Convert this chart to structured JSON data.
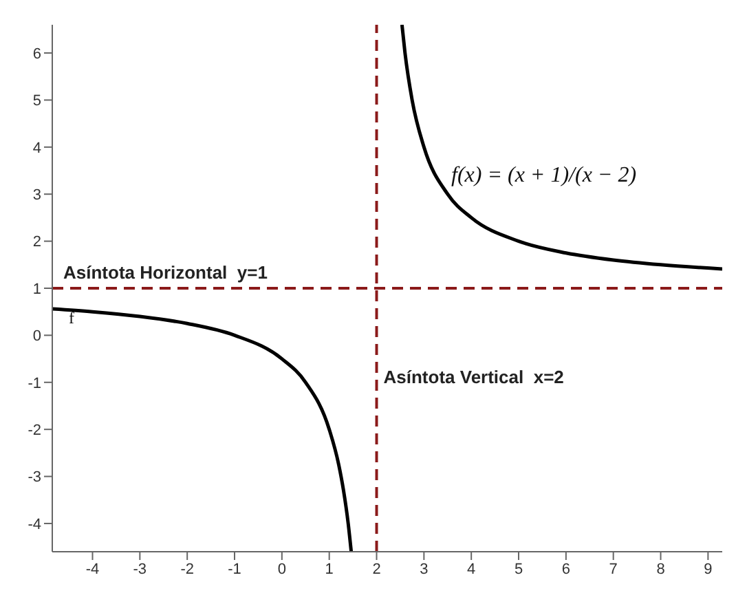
{
  "chart_data": {
    "type": "line",
    "xlim": [
      -4.85,
      9.3
    ],
    "ylim": [
      -4.6,
      6.6
    ],
    "xticks": [
      -4,
      -3,
      -2,
      -1,
      0,
      1,
      2,
      3,
      4,
      5,
      6,
      7,
      8,
      9
    ],
    "yticks": [
      -4,
      -3,
      -2,
      -1,
      0,
      1,
      2,
      3,
      4,
      5,
      6
    ],
    "grid": false,
    "marker": "none",
    "line_style": "solid",
    "series": [
      {
        "color": "#000000",
        "x": [
          -4.85,
          -4,
          -3,
          -2,
          -1,
          0,
          0.5,
          1,
          1.2,
          1.3,
          1.4,
          1.464
        ],
        "values": [
          0.56,
          0.5,
          0.4,
          0.25,
          0,
          -0.5,
          -1,
          -2,
          -2.75,
          -3.29,
          -4,
          -4.6
        ]
      },
      {
        "color": "#000000",
        "x": [
          2.536,
          2.6,
          2.75,
          3,
          3.5,
          4,
          5,
          6,
          7,
          8,
          9.3
        ],
        "values": [
          6.6,
          6,
          5,
          4,
          3,
          2.5,
          2,
          1.75,
          1.6,
          1.5,
          1.41
        ]
      }
    ],
    "ref_lines": [
      {
        "axis": "y",
        "value": 1,
        "label": "Asíntota Horizontal  y=1",
        "color": "#8b1a1a",
        "line_style": "dashed"
      },
      {
        "axis": "x",
        "value": 2,
        "label": "Asíntota Vertical  x=2",
        "color": "#8b1a1a",
        "line_style": "dashed"
      }
    ],
    "annotations": [
      "f",
      "f(x) = (x + 1)/(x − 2)"
    ]
  }
}
